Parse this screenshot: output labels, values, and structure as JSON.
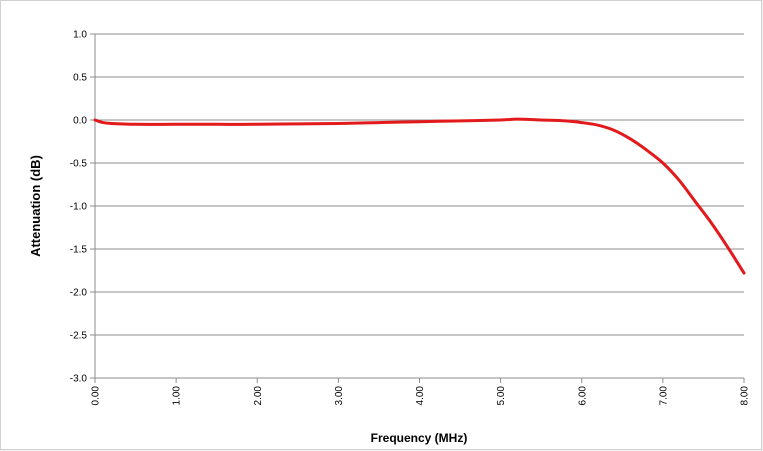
{
  "chart_data": {
    "type": "line",
    "title": "",
    "xlabel": "Frequency (MHz)",
    "ylabel": "Attenuation (dB)",
    "xlim": [
      0,
      8
    ],
    "ylim": [
      -3,
      1
    ],
    "x_ticks": [
      "0.00",
      "1.00",
      "2.00",
      "3.00",
      "4.00",
      "5.00",
      "6.00",
      "7.00",
      "8.00"
    ],
    "y_ticks": [
      "1.0",
      "0.5",
      "0.0",
      "-0.5",
      "-1.0",
      "-1.5",
      "-2.0",
      "-2.5",
      "-3.0"
    ],
    "grid": "horizontal",
    "legend": "none",
    "series": [
      {
        "color": "#e31a1c",
        "x": [
          0.0,
          0.1,
          0.2,
          0.5,
          1.0,
          1.5,
          2.0,
          2.5,
          3.0,
          3.5,
          4.0,
          4.5,
          5.0,
          5.2,
          5.5,
          5.8,
          6.0,
          6.2,
          6.4,
          6.6,
          6.8,
          7.0,
          7.2,
          7.4,
          7.6,
          7.8,
          8.0
        ],
        "y": [
          0.0,
          -0.03,
          -0.04,
          -0.05,
          -0.05,
          -0.05,
          -0.05,
          -0.045,
          -0.04,
          -0.03,
          -0.02,
          -0.01,
          0.0,
          0.01,
          0.0,
          -0.01,
          -0.03,
          -0.06,
          -0.12,
          -0.22,
          -0.35,
          -0.5,
          -0.7,
          -0.95,
          -1.2,
          -1.48,
          -1.78
        ]
      }
    ]
  }
}
